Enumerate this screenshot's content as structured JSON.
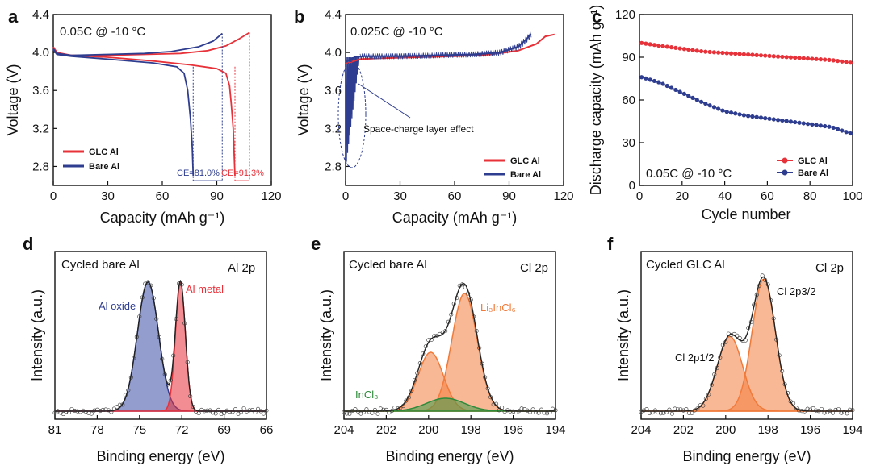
{
  "chart_data": [
    {
      "id": "a",
      "type": "line",
      "panel_label": "a",
      "title": "0.05C @ -10 °C",
      "xlabel": "Capacity (mAh g⁻¹)",
      "ylabel": "Voltage (V)",
      "xlim": [
        0,
        120
      ],
      "ylim": [
        2.6,
        4.4
      ],
      "xticks": [
        "0",
        "30",
        "60",
        "90",
        "120"
      ],
      "yticks": [
        "2.8",
        "3.2",
        "3.6",
        "4.0",
        "4.4"
      ],
      "series": [
        {
          "name": "GLC Al",
          "color": "#e8323a",
          "charge": [
            [
              0,
              4.06
            ],
            [
              2,
              4.0
            ],
            [
              10,
              3.97
            ],
            [
              30,
              3.97
            ],
            [
              50,
              3.98
            ],
            [
              70,
              3.99
            ],
            [
              85,
              4.02
            ],
            [
              95,
              4.07
            ],
            [
              102,
              4.14
            ],
            [
              108,
              4.21
            ]
          ],
          "discharge": [
            [
              0,
              4.05
            ],
            [
              2,
              3.99
            ],
            [
              10,
              3.97
            ],
            [
              30,
              3.95
            ],
            [
              55,
              3.91
            ],
            [
              75,
              3.87
            ],
            [
              90,
              3.83
            ],
            [
              95,
              3.78
            ],
            [
              97,
              3.65
            ],
            [
              98,
              3.45
            ],
            [
              99,
              3.2
            ],
            [
              99.5,
              2.95
            ],
            [
              100,
              2.7
            ]
          ]
        },
        {
          "name": "Bare Al",
          "color": "#2e3d8f",
          "charge": [
            [
              0,
              4.04
            ],
            [
              2,
              3.99
            ],
            [
              10,
              3.97
            ],
            [
              30,
              3.98
            ],
            [
              50,
              3.99
            ],
            [
              65,
              4.01
            ],
            [
              80,
              4.06
            ],
            [
              88,
              4.12
            ],
            [
              93,
              4.2
            ]
          ],
          "discharge": [
            [
              0,
              4.03
            ],
            [
              2,
              3.98
            ],
            [
              10,
              3.96
            ],
            [
              30,
              3.93
            ],
            [
              55,
              3.89
            ],
            [
              68,
              3.85
            ],
            [
              72,
              3.78
            ],
            [
              74,
              3.6
            ],
            [
              75.5,
              3.3
            ],
            [
              76.5,
              3.0
            ],
            [
              77,
              2.7
            ]
          ]
        }
      ],
      "annotations": [
        "CE=81.0%",
        "CE=91.3%"
      ]
    },
    {
      "id": "b",
      "type": "line",
      "panel_label": "b",
      "title": "0.025C @ -10 °C",
      "xlabel": "Capacity (mAh g⁻¹)",
      "ylabel": "Voltage (V)",
      "xlim": [
        0,
        120
      ],
      "ylim": [
        2.6,
        4.4
      ],
      "xticks": [
        "0",
        "30",
        "60",
        "90",
        "120"
      ],
      "yticks": [
        "2.8",
        "3.2",
        "3.6",
        "4.0",
        "4.4"
      ],
      "series": [
        {
          "name": "GLC Al",
          "color": "#e8323a",
          "values": [
            [
              0,
              3.88
            ],
            [
              3,
              3.9
            ],
            [
              8,
              3.93
            ],
            [
              20,
              3.94
            ],
            [
              40,
              3.95
            ],
            [
              60,
              3.96
            ],
            [
              80,
              3.98
            ],
            [
              95,
              4.02
            ],
            [
              105,
              4.09
            ],
            [
              110,
              4.17
            ],
            [
              115,
              4.19
            ]
          ]
        },
        {
          "name": "Bare Al",
          "color": "#2e3d8f",
          "values": [
            [
              0,
              3.9
            ],
            [
              5,
              3.95
            ],
            [
              10,
              3.96
            ],
            [
              30,
              3.96
            ],
            [
              50,
              3.97
            ],
            [
              70,
              3.98
            ],
            [
              85,
              4.0
            ],
            [
              95,
              4.06
            ],
            [
              100,
              4.15
            ],
            [
              102,
              4.2
            ]
          ]
        }
      ],
      "annotations": [
        "Space-charge layer effect"
      ]
    },
    {
      "id": "c",
      "type": "scatter",
      "panel_label": "c",
      "title": "0.05C @ -10 °C",
      "xlabel": "Cycle number",
      "ylabel": "Discharge capacity (mAh g⁻¹)",
      "xlim": [
        0,
        100
      ],
      "ylim": [
        0,
        120
      ],
      "xticks": [
        "0",
        "20",
        "40",
        "60",
        "80",
        "100"
      ],
      "yticks": [
        "0",
        "30",
        "60",
        "90",
        "120"
      ],
      "series": [
        {
          "name": "GLC Al",
          "color": "#e8323a",
          "x": [
            1,
            10,
            20,
            30,
            40,
            50,
            60,
            70,
            80,
            90,
            100
          ],
          "values": [
            100,
            98,
            96,
            94,
            93,
            92,
            91,
            90,
            89,
            88,
            86
          ]
        },
        {
          "name": "Bare Al",
          "color": "#2e3d8f",
          "x": [
            1,
            10,
            20,
            30,
            40,
            50,
            60,
            70,
            80,
            90,
            100
          ],
          "values": [
            76,
            72,
            65,
            58,
            52,
            49,
            47,
            45,
            43,
            41,
            36
          ]
        }
      ]
    },
    {
      "id": "d",
      "type": "line",
      "panel_label": "d",
      "title": "Cycled bare Al",
      "subtitle": "Al 2p",
      "xlabel": "Binding energy (eV)",
      "ylabel": "Intensity (a.u.)",
      "xlim": [
        81,
        66
      ],
      "xticks": [
        "81",
        "78",
        "75",
        "72",
        "69",
        "66"
      ],
      "peaks": [
        {
          "name": "Al oxide",
          "color": "#2e3d8f",
          "center": 74.4,
          "width": 0.75,
          "height": 0.9
        },
        {
          "name": "Al metal",
          "color": "#e8323a",
          "center": 72.1,
          "width": 0.35,
          "height": 0.9
        }
      ]
    },
    {
      "id": "e",
      "type": "line",
      "panel_label": "e",
      "title": "Cycled bare Al",
      "subtitle": "Cl 2p",
      "xlabel": "Binding energy (eV)",
      "ylabel": "Intensity (a.u.)",
      "xlim": [
        204,
        194
      ],
      "xticks": [
        "204",
        "202",
        "200",
        "198",
        "196",
        "194"
      ],
      "peaks": [
        {
          "name": "Li₃InCl₆",
          "color": "#f07a3a",
          "center": 198.3,
          "width": 0.6,
          "height": 0.82
        },
        {
          "name": "Li₃InCl₆ 2p1/2",
          "color": "#f07a3a",
          "center": 199.9,
          "width": 0.6,
          "height": 0.41
        },
        {
          "name": "InCl₃",
          "color": "#2e8b3a",
          "center": 199.2,
          "width": 0.9,
          "height": 0.09
        }
      ]
    },
    {
      "id": "f",
      "type": "line",
      "panel_label": "f",
      "title": "Cycled GLC Al",
      "subtitle": "Cl 2p",
      "xlabel": "Binding energy (eV)",
      "ylabel": "Intensity (a.u.)",
      "xlim": [
        204,
        194
      ],
      "xticks": [
        "204",
        "202",
        "200",
        "198",
        "196",
        "194"
      ],
      "peaks": [
        {
          "name": "Cl 2p3/2",
          "color": "#f07a3a",
          "center": 198.2,
          "width": 0.55,
          "height": 0.92
        },
        {
          "name": "Cl 2p1/2",
          "color": "#f07a3a",
          "center": 199.8,
          "width": 0.6,
          "height": 0.52
        }
      ]
    }
  ]
}
